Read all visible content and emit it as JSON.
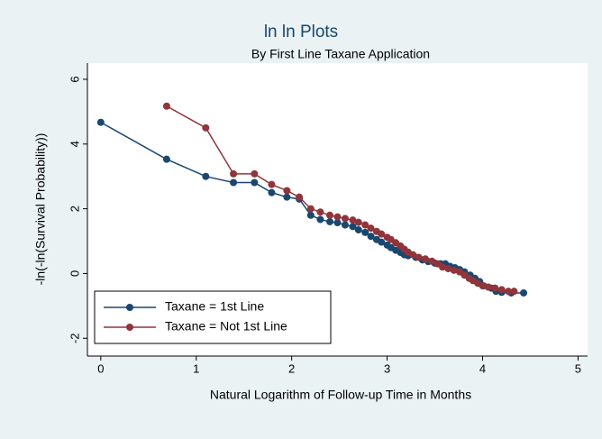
{
  "chart_data": {
    "type": "line",
    "title": "ln ln Plots",
    "subtitle": "By First Line Taxane Application",
    "x_label": "Natural Logarithm of Follow-up Time in Months",
    "y_label": "-ln(-ln(Survival Probability))",
    "xlim": [
      -0.14,
      5.1
    ],
    "ylim": [
      -2.55,
      6.5
    ],
    "xticks": [
      0,
      1,
      2,
      3,
      4,
      5
    ],
    "yticks": [
      -2,
      0,
      2,
      4,
      6
    ],
    "legend": "lower left",
    "grid": false,
    "series": [
      {
        "name": "Taxane = 1st Line",
        "color": "#1a476f",
        "x": [
          0,
          0.69,
          1.1,
          1.39,
          1.61,
          1.79,
          1.95,
          2.08,
          2.2,
          2.3,
          2.4,
          2.48,
          2.56,
          2.64,
          2.7,
          2.77,
          2.83,
          2.89,
          2.94,
          3.0,
          3.04,
          3.09,
          3.14,
          3.18,
          3.22,
          3.3,
          3.37,
          3.43,
          3.5,
          3.56,
          3.61,
          3.66,
          3.71,
          3.76,
          3.81,
          3.87,
          3.92,
          3.97,
          4.01,
          4.09,
          4.14,
          4.2,
          4.3,
          4.43
        ],
        "values": [
          4.67,
          3.53,
          3.0,
          2.81,
          2.81,
          2.5,
          2.36,
          2.3,
          1.8,
          1.67,
          1.6,
          1.57,
          1.5,
          1.45,
          1.35,
          1.27,
          1.15,
          1.05,
          0.97,
          0.88,
          0.8,
          0.72,
          0.65,
          0.58,
          0.55,
          0.5,
          0.42,
          0.37,
          0.32,
          0.3,
          0.3,
          0.22,
          0.18,
          0.12,
          0.05,
          -0.05,
          -0.15,
          -0.25,
          -0.38,
          -0.45,
          -0.55,
          -0.58,
          -0.6,
          -0.6
        ]
      },
      {
        "name": "Taxane = Not 1st Line",
        "color": "#90353b",
        "x": [
          0.69,
          1.1,
          1.39,
          1.61,
          1.79,
          1.95,
          2.08,
          2.2,
          2.3,
          2.4,
          2.48,
          2.56,
          2.64,
          2.7,
          2.77,
          2.83,
          2.89,
          2.94,
          3.0,
          3.04,
          3.09,
          3.14,
          3.18,
          3.22,
          3.27,
          3.33,
          3.4,
          3.47,
          3.53,
          3.58,
          3.64,
          3.7,
          3.76,
          3.81,
          3.86,
          3.9,
          3.95,
          4.0,
          4.06,
          4.13,
          4.2,
          4.27,
          4.33
        ],
        "values": [
          5.17,
          4.5,
          3.08,
          3.08,
          2.75,
          2.56,
          2.36,
          2.0,
          1.9,
          1.8,
          1.75,
          1.7,
          1.65,
          1.58,
          1.5,
          1.4,
          1.3,
          1.22,
          1.12,
          1.05,
          0.95,
          0.85,
          0.75,
          0.66,
          0.58,
          0.5,
          0.45,
          0.38,
          0.3,
          0.2,
          0.15,
          0.1,
          0.05,
          -0.05,
          -0.15,
          -0.22,
          -0.3,
          -0.38,
          -0.42,
          -0.45,
          -0.5,
          -0.55,
          -0.55
        ]
      }
    ]
  }
}
